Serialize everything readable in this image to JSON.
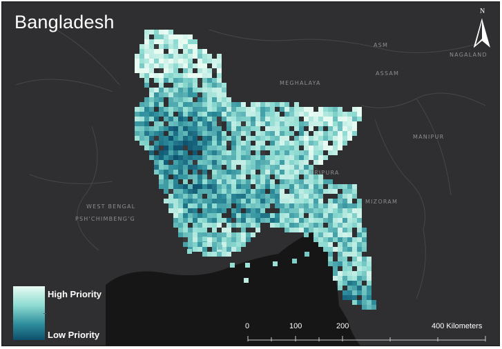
{
  "title": "Bangladesh",
  "north_arrow": {
    "letter": "N",
    "icon": "north-arrow-icon"
  },
  "place_labels": [
    {
      "key": "asm",
      "text": "ASM"
    },
    {
      "key": "nagaland",
      "text": "NAGALAND"
    },
    {
      "key": "assam",
      "text": "ASSAM"
    },
    {
      "key": "meghalaya",
      "text": "MEGHALAYA"
    },
    {
      "key": "manipur",
      "text": "MANIPUR"
    },
    {
      "key": "tripura",
      "text": "TRIPURA"
    },
    {
      "key": "mizoram",
      "text": "MIZORAM"
    },
    {
      "key": "west_bengal",
      "text": "WEST BENGAL"
    },
    {
      "key": "pschimbeng",
      "text": "PSH'CHIMBENG'G"
    }
  ],
  "legend": {
    "high_label": "High Priority",
    "low_label": "Low Priority",
    "colors": [
      "#e8fbf3",
      "#8fdcd2",
      "#2f8f9c",
      "#0d4f6d"
    ]
  },
  "scale_bar": {
    "labels": [
      "0",
      "100",
      "200",
      "400 Kilometers"
    ]
  },
  "colors": {
    "background": "#2f2f31",
    "water": "#161616",
    "borders": "#4a4a4c"
  }
}
